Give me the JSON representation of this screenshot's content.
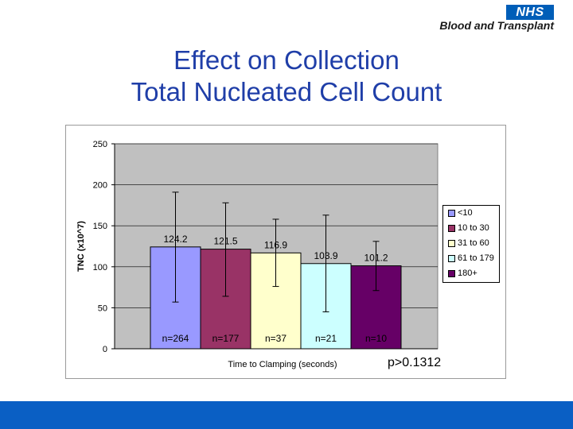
{
  "logo": {
    "mark": "NHS",
    "organisation": "Blood and Transplant"
  },
  "slide_title": [
    "Effect on Collection",
    "Total Nucleated Cell Count"
  ],
  "p_value": "p>0.1312",
  "chart_data": {
    "type": "bar",
    "title": "",
    "xlabel": "Time to Clamping (seconds)",
    "ylabel": "TNC (x10^7)",
    "ylim": [
      0,
      250
    ],
    "yticks": [
      0,
      50,
      100,
      150,
      200,
      250
    ],
    "grid": true,
    "legend_position": "right",
    "series": [
      {
        "name": "<10",
        "value": 124.2,
        "value_label": "124.2",
        "error_low": 57,
        "error_high": 191,
        "n_label": "n=264",
        "color": "#9999ff"
      },
      {
        "name": "10 to 30",
        "value": 121.5,
        "value_label": "121.5",
        "error_low": 64,
        "error_high": 178,
        "n_label": "n=177",
        "color": "#993366"
      },
      {
        "name": "31 to 60",
        "value": 116.9,
        "value_label": "116.9",
        "error_low": 76,
        "error_high": 158,
        "n_label": "n=37",
        "color": "#ffffcc"
      },
      {
        "name": "61 to 179",
        "value": 103.9,
        "value_label": "103.9",
        "error_low": 45,
        "error_high": 163,
        "n_label": "n=21",
        "color": "#ccffff"
      },
      {
        "name": "180+",
        "value": 101.2,
        "value_label": "101.2",
        "error_low": 71,
        "error_high": 131,
        "n_label": "n=10",
        "color": "#660066"
      }
    ]
  },
  "colors": {
    "title": "#1f3ea8",
    "plot_background": "#c0c0c0",
    "bottom_bar": "#0a5fc4",
    "nhs_blue": "#005eb8"
  }
}
